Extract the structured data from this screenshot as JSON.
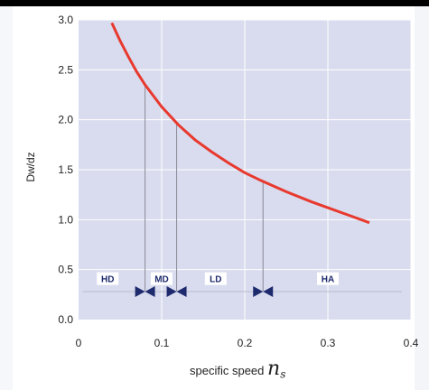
{
  "chart_data": {
    "type": "line",
    "title": "",
    "xlabel": "specific speed",
    "xlabel_symbol": "n",
    "xlabel_subscript": "s",
    "ylabel": "Dw/dz",
    "xlim": [
      0,
      0.4
    ],
    "ylim": [
      0,
      3.0
    ],
    "x_ticks": [
      "0",
      "0.1",
      "0.2",
      "0.3",
      "0.4"
    ],
    "y_ticks": [
      "0.0",
      "0.5",
      "1.0",
      "1.5",
      "2.0",
      "2.5",
      "3.0"
    ],
    "x_tick_values": [
      0,
      0.1,
      0.2,
      0.3,
      0.4
    ],
    "y_tick_values": [
      0,
      0.5,
      1.0,
      1.5,
      2.0,
      2.5,
      3.0
    ],
    "grid": true,
    "series": [
      {
        "color": "#e8392e",
        "x": [
          0.04,
          0.05,
          0.06,
          0.07,
          0.08,
          0.09,
          0.1,
          0.12,
          0.14,
          0.16,
          0.18,
          0.2,
          0.22,
          0.25,
          0.28,
          0.3,
          0.33,
          0.35
        ],
        "y": [
          2.97,
          2.79,
          2.63,
          2.48,
          2.35,
          2.24,
          2.13,
          1.95,
          1.8,
          1.68,
          1.57,
          1.47,
          1.39,
          1.28,
          1.18,
          1.12,
          1.03,
          0.97
        ]
      }
    ],
    "markers": [
      {
        "x": 0.08,
        "y": 0.28
      },
      {
        "x": 0.118,
        "y": 0.28
      },
      {
        "x": 0.222,
        "y": 0.28
      }
    ],
    "regions": [
      {
        "label": "HD",
        "x": 0.035
      },
      {
        "label": "MD",
        "x": 0.1
      },
      {
        "label": "LD",
        "x": 0.165
      },
      {
        "label": "HA",
        "x": 0.3
      }
    ],
    "region_label_y": 0.41,
    "regime_line_y": 0.28,
    "region_boundaries": [
      0.08,
      0.118,
      0.222
    ],
    "colors": {
      "plot_background": "#d9dcee",
      "grid": "#ffffff",
      "curve": "#e8392e",
      "marker": "#1e2a6e",
      "label_box": "#ffffff"
    }
  }
}
